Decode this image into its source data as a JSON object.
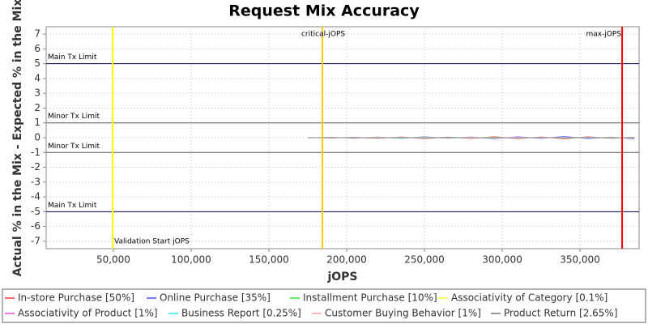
{
  "chart_data": {
    "type": "line",
    "title": "Request Mix Accuracy",
    "x_label": "jOPS",
    "y_label": "Actual % in the Mix - Expected % in the Mix",
    "xlim": [
      6800,
      388000
    ],
    "ylim": [
      -7.5,
      7.5
    ],
    "xticks": [
      {
        "value": 50000,
        "label": "50,000"
      },
      {
        "value": 100000,
        "label": "100,000"
      },
      {
        "value": 150000,
        "label": "150,000"
      },
      {
        "value": 200000,
        "label": "200,000"
      },
      {
        "value": 250000,
        "label": "250,000"
      },
      {
        "value": 300000,
        "label": "300,000"
      },
      {
        "value": 350000,
        "label": "350,000"
      }
    ],
    "yticks": [
      -7,
      -6,
      -5,
      -4,
      -3,
      -2,
      -1,
      0,
      1,
      2,
      3,
      4,
      5,
      6,
      7
    ],
    "grid": true,
    "hlines": [
      {
        "value": 5,
        "label": "Main Tx Limit"
      },
      {
        "value": 1,
        "label": "Minor Tx Limit"
      },
      {
        "value": -1,
        "label": "Minor Tx Limit"
      },
      {
        "value": -5,
        "label": "Main Tx Limit"
      }
    ],
    "vlines": [
      {
        "value": 49500,
        "label": "Validation Start jOPS",
        "color": "#ffff00"
      },
      {
        "value": 184400,
        "label": "critical-jOPS",
        "color": "#ffcc00"
      },
      {
        "value": 377100,
        "label": "max-jOPS",
        "color": "#ff0000"
      }
    ],
    "x": [
      175000,
      190000,
      205000,
      220000,
      235000,
      250000,
      265000,
      280000,
      295000,
      310000,
      325000,
      340000,
      355000,
      370000,
      385000
    ],
    "series": [
      {
        "name": "In-store Purchase [50%]",
        "color": "#ff6666",
        "values": [
          0.01,
          -0.02,
          0.03,
          -0.04,
          0.05,
          -0.06,
          0.04,
          -0.05,
          0.07,
          -0.06,
          0.05,
          -0.08,
          0.06,
          -0.04,
          0.03
        ]
      },
      {
        "name": "Online Purchase [35%]",
        "color": "#7777ee",
        "values": [
          -0.01,
          0.02,
          -0.03,
          0.04,
          -0.05,
          0.06,
          -0.04,
          0.05,
          -0.07,
          0.06,
          -0.05,
          0.08,
          -0.06,
          0.04,
          -0.08
        ]
      },
      {
        "name": "Installment Purchase [10%]",
        "color": "#66ee66",
        "values": [
          0.0,
          0.01,
          -0.01,
          0.02,
          -0.02,
          0.03,
          -0.02,
          0.01,
          0.03,
          -0.02,
          0.02,
          -0.03,
          0.01,
          0.02,
          -0.02
        ]
      },
      {
        "name": "Associativity of Category [0.1%]",
        "color": "#ffff66",
        "values": [
          0.0,
          0.0,
          0.0,
          0.0,
          0.0,
          0.0,
          0.0,
          0.0,
          0.0,
          0.0,
          0.0,
          0.0,
          0.0,
          0.0,
          0.0
        ]
      },
      {
        "name": "Associativity of Product [1%]",
        "color": "#ee77ee",
        "values": [
          0.0,
          -0.01,
          0.01,
          0.0,
          0.01,
          -0.01,
          0.02,
          -0.01,
          0.0,
          0.01,
          -0.01,
          0.0,
          0.01,
          -0.01,
          0.0
        ]
      },
      {
        "name": "Business Report [0.25%]",
        "color": "#66eeee",
        "values": [
          0.0,
          0.0,
          0.01,
          0.0,
          -0.01,
          0.0,
          0.01,
          0.0,
          -0.01,
          0.0,
          0.01,
          0.0,
          0.0,
          -0.01,
          0.0
        ]
      },
      {
        "name": "Customer Buying Behavior [1%]",
        "color": "#ffbbbb",
        "values": [
          0.01,
          0.0,
          -0.01,
          0.01,
          0.02,
          -0.01,
          0.0,
          0.02,
          -0.02,
          0.01,
          0.0,
          -0.01,
          0.02,
          0.0,
          -0.01
        ]
      },
      {
        "name": "Product Return [2.65%]",
        "color": "#999999",
        "values": [
          -0.01,
          0.01,
          0.0,
          -0.02,
          0.02,
          -0.03,
          0.03,
          -0.02,
          0.01,
          -0.03,
          0.02,
          -0.01,
          0.03,
          -0.02,
          0.02
        ]
      }
    ]
  }
}
